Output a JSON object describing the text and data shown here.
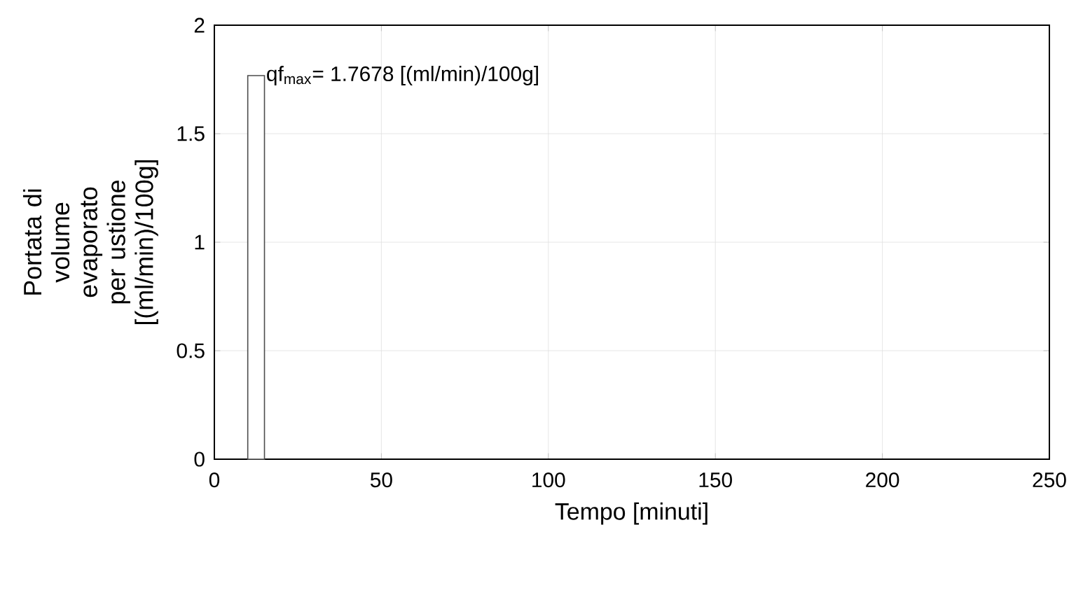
{
  "chart_data": {
    "type": "histogram",
    "bins": [
      10,
      15
    ],
    "values": [
      1.7678
    ],
    "color": "#ffffff",
    "xlim": [
      0,
      250
    ],
    "ylim": [
      0,
      2
    ],
    "xticks": [
      0,
      50,
      100,
      150,
      200,
      250
    ],
    "yticks": [
      0,
      0.5,
      1,
      1.5,
      2
    ],
    "xlabel": "Tempo   [minuti]",
    "ylabel": "Portata di volume evaporato per ustione [(ml/min)/100g]",
    "annotations": [
      {
        "text": "qf$_{max}$= 1.7678 [(ml/min)/100g]",
        "x": 15,
        "y": 1.7678
      }
    ],
    "grid": true
  }
}
